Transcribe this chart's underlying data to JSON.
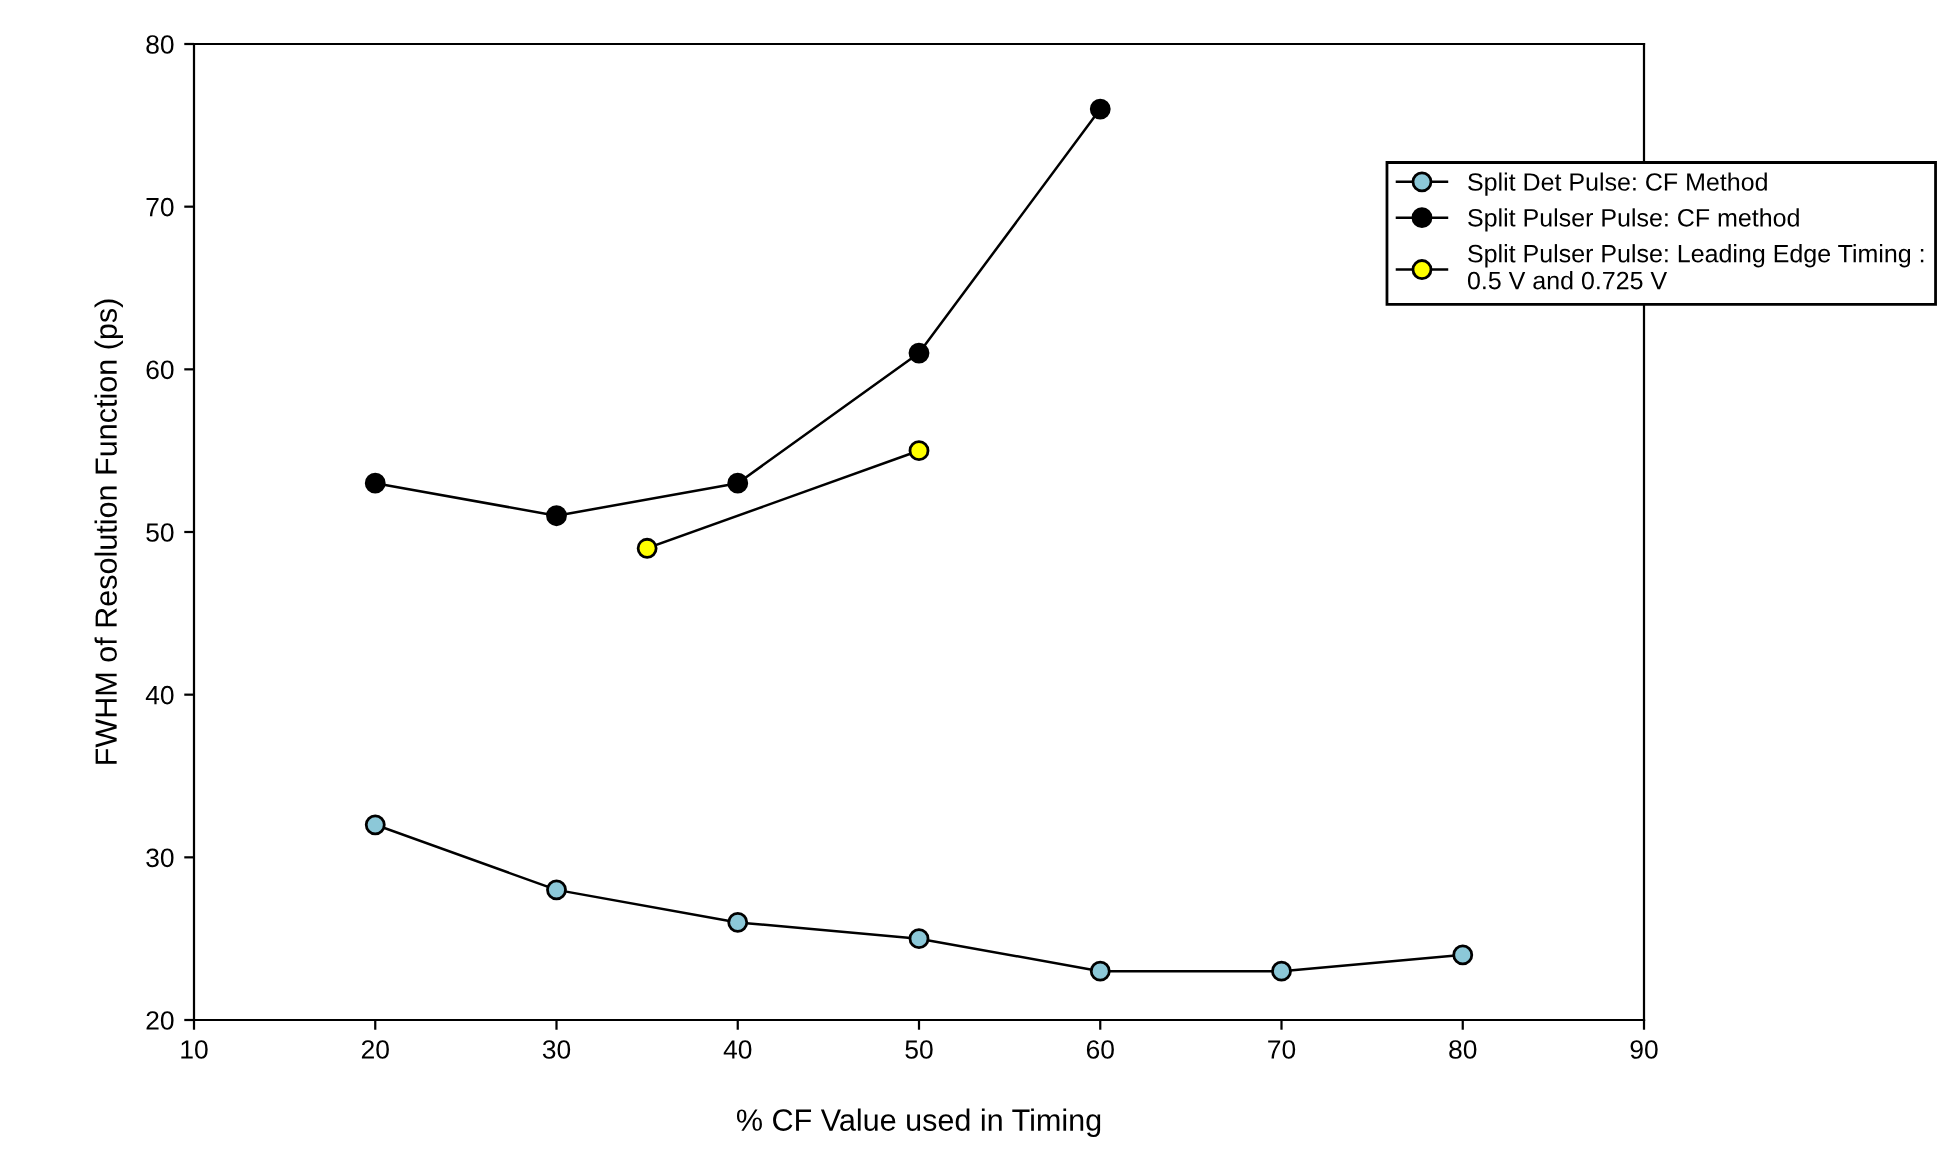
{
  "chart_data": {
    "type": "line",
    "xlabel": "% CF Value used in Timing",
    "ylabel": "FWHM of Resolution Function (ps)",
    "xlim": [
      10,
      90
    ],
    "xticks": [
      10,
      20,
      30,
      40,
      50,
      60,
      70,
      80,
      90
    ],
    "ylim": [
      20,
      80
    ],
    "yticks": [
      20,
      30,
      40,
      50,
      60,
      70,
      80
    ],
    "grid": false,
    "legend": "top right",
    "marker": "circle",
    "line_style": "solid",
    "series": [
      {
        "name": "Split Det Pulse: CF Method",
        "color": "#8cc8d8",
        "x": [
          20,
          30,
          40,
          50,
          60,
          70,
          80
        ],
        "values": [
          32,
          28,
          26,
          25,
          23,
          23,
          24
        ]
      },
      {
        "name": "Split Pulser Pulse: CF method",
        "color": "#000000",
        "x": [
          20,
          30,
          40,
          50,
          60
        ],
        "values": [
          53,
          51,
          53,
          61,
          76
        ]
      },
      {
        "name": "Split Pulser Pulse: Leading Edge Timing :\n0.5 V and 0.725 V",
        "color": "#ffff00",
        "x": [
          35,
          50
        ],
        "values": [
          49,
          55
        ]
      }
    ]
  }
}
